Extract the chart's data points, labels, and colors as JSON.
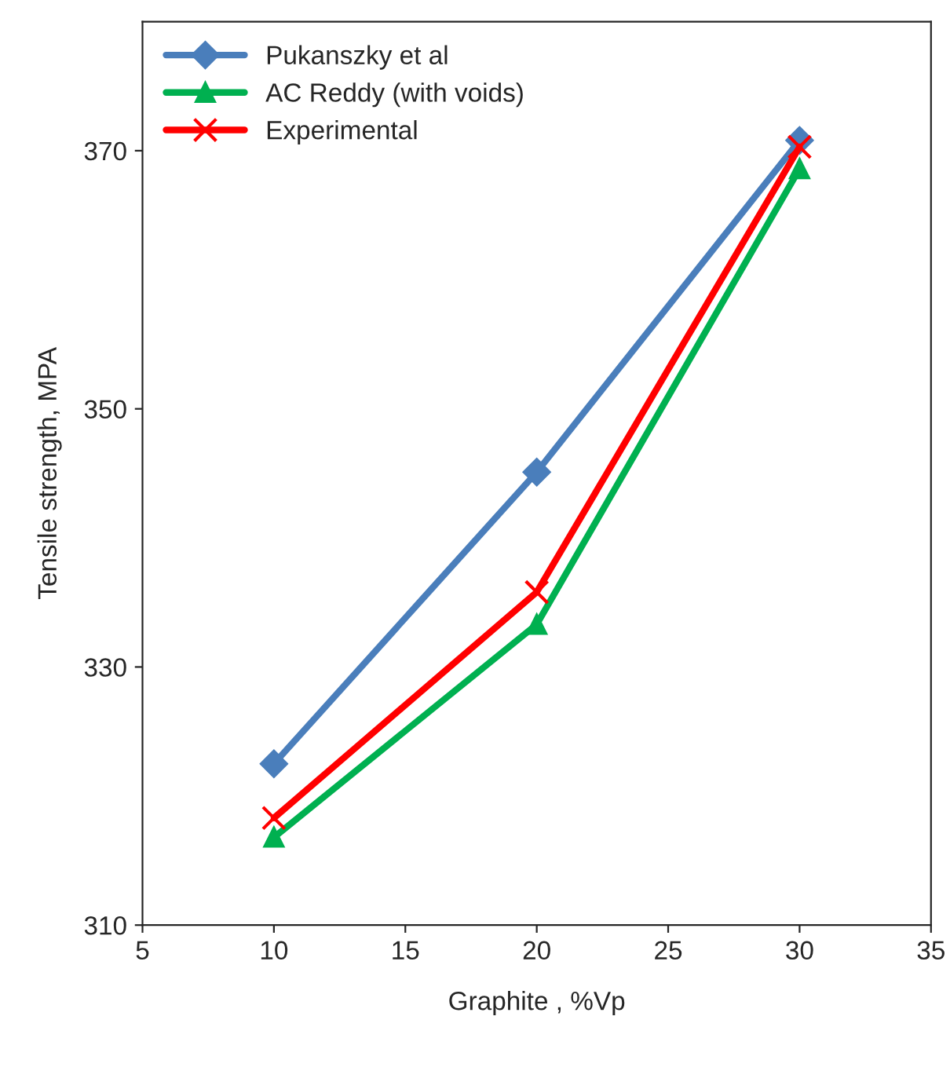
{
  "chart_data": {
    "type": "line",
    "xlabel": "Graphite , %Vp",
    "ylabel": "Tensile strength, MPA",
    "x": [
      10,
      20,
      30
    ],
    "series": [
      {
        "name": "Pukanszky et al",
        "color": "#4a7ebb",
        "marker": "diamond",
        "values": [
          322.5,
          345.1,
          370.8
        ]
      },
      {
        "name": "AC Reddy (with voids)",
        "color": "#00b050",
        "marker": "triangle",
        "values": [
          316.8,
          333.3,
          368.6
        ]
      },
      {
        "name": "Experimental",
        "color": "#ff0000",
        "marker": "cross",
        "values": [
          318.3,
          335.8,
          370.3
        ]
      }
    ],
    "xlim": [
      5,
      35
    ],
    "xticks": [
      5,
      10,
      15,
      20,
      25,
      30,
      35
    ],
    "ylim": [
      310,
      380
    ],
    "yticks": [
      310,
      330,
      350,
      370
    ],
    "legend": "top left",
    "grid": false,
    "line_style": "solid"
  }
}
